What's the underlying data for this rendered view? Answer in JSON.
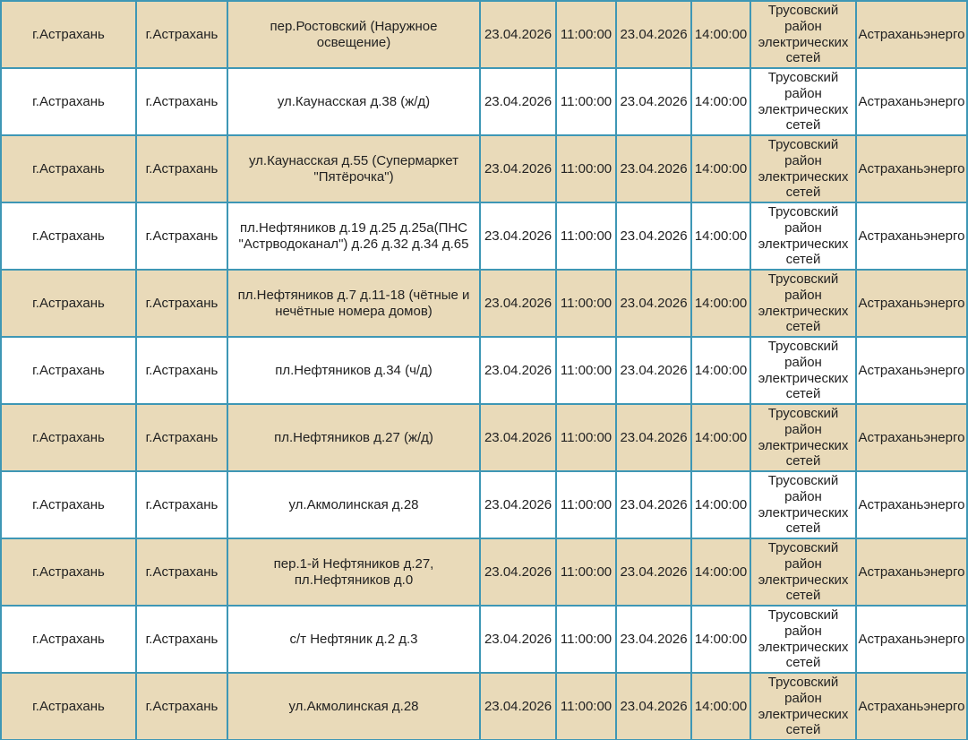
{
  "colors": {
    "border": "#3e97b5",
    "row_alt_background": "#e9dab9",
    "row_background": "#ffffff",
    "text": "#222222"
  },
  "table": {
    "rows": [
      {
        "region_city": "г.Астрахань",
        "city": "г.Астрахань",
        "address": "пер.Ростовский (Наружное освещение)",
        "start_date": "23.04.2026",
        "start_time": "11:00:00",
        "end_date": "23.04.2026",
        "end_time": "14:00:00",
        "grid_branch": "Трусовский район электрических сетей",
        "company": "Астраханьэнерго"
      },
      {
        "region_city": "г.Астрахань",
        "city": "г.Астрахань",
        "address": "ул.Каунасская д.38 (ж/д)",
        "start_date": "23.04.2026",
        "start_time": "11:00:00",
        "end_date": "23.04.2026",
        "end_time": "14:00:00",
        "grid_branch": "Трусовский район электрических сетей",
        "company": "Астраханьэнерго"
      },
      {
        "region_city": "г.Астрахань",
        "city": "г.Астрахань",
        "address": "ул.Каунасская д.55 (Супермаркет \"Пятёрочка\")",
        "start_date": "23.04.2026",
        "start_time": "11:00:00",
        "end_date": "23.04.2026",
        "end_time": "14:00:00",
        "grid_branch": "Трусовский район электрических сетей",
        "company": "Астраханьэнерго"
      },
      {
        "region_city": "г.Астрахань",
        "city": "г.Астрахань",
        "address": "пл.Нефтяников д.19 д.25 д.25а(ПНС \"Астрводоканал\") д.26 д.32 д.34 д.65",
        "start_date": "23.04.2026",
        "start_time": "11:00:00",
        "end_date": "23.04.2026",
        "end_time": "14:00:00",
        "grid_branch": "Трусовский район электрических сетей",
        "company": "Астраханьэнерго"
      },
      {
        "region_city": "г.Астрахань",
        "city": "г.Астрахань",
        "address": "пл.Нефтяников д.7 д.11-18 (чётные и нечётные номера домов)",
        "start_date": "23.04.2026",
        "start_time": "11:00:00",
        "end_date": "23.04.2026",
        "end_time": "14:00:00",
        "grid_branch": "Трусовский район электрических сетей",
        "company": "Астраханьэнерго"
      },
      {
        "region_city": "г.Астрахань",
        "city": "г.Астрахань",
        "address": "пл.Нефтяников д.34 (ч/д)",
        "start_date": "23.04.2026",
        "start_time": "11:00:00",
        "end_date": "23.04.2026",
        "end_time": "14:00:00",
        "grid_branch": "Трусовский район электрических сетей",
        "company": "Астраханьэнерго"
      },
      {
        "region_city": "г.Астрахань",
        "city": "г.Астрахань",
        "address": "пл.Нефтяников д.27 (ж/д)",
        "start_date": "23.04.2026",
        "start_time": "11:00:00",
        "end_date": "23.04.2026",
        "end_time": "14:00:00",
        "grid_branch": "Трусовский район электрических сетей",
        "company": "Астраханьэнерго"
      },
      {
        "region_city": "г.Астрахань",
        "city": "г.Астрахань",
        "address": "ул.Акмолинская д.28",
        "start_date": "23.04.2026",
        "start_time": "11:00:00",
        "end_date": "23.04.2026",
        "end_time": "14:00:00",
        "grid_branch": "Трусовский район электрических сетей",
        "company": "Астраханьэнерго"
      },
      {
        "region_city": "г.Астрахань",
        "city": "г.Астрахань",
        "address": "пер.1-й Нефтяников д.27, пл.Нефтяников д.0",
        "start_date": "23.04.2026",
        "start_time": "11:00:00",
        "end_date": "23.04.2026",
        "end_time": "14:00:00",
        "grid_branch": "Трусовский район электрических сетей",
        "company": "Астраханьэнерго"
      },
      {
        "region_city": "г.Астрахань",
        "city": "г.Астрахань",
        "address": "с/т Нефтяник д.2 д.3",
        "start_date": "23.04.2026",
        "start_time": "11:00:00",
        "end_date": "23.04.2026",
        "end_time": "14:00:00",
        "grid_branch": "Трусовский район электрических сетей",
        "company": "Астраханьэнерго"
      },
      {
        "region_city": "г.Астрахань",
        "city": "г.Астрахань",
        "address": "ул.Акмолинская д.28",
        "start_date": "23.04.2026",
        "start_time": "11:00:00",
        "end_date": "23.04.2026",
        "end_time": "14:00:00",
        "grid_branch": "Трусовский район электрических сетей",
        "company": "Астраханьэнерго"
      }
    ]
  }
}
